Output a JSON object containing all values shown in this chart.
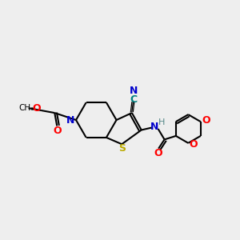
{
  "bg_color": "#eeeeee",
  "bond_color": "#000000",
  "atom_colors": {
    "N": "#0000cc",
    "O": "#ff0000",
    "S": "#bbaa00",
    "C_cn": "#008080",
    "H": "#558888"
  },
  "lw": 1.5
}
